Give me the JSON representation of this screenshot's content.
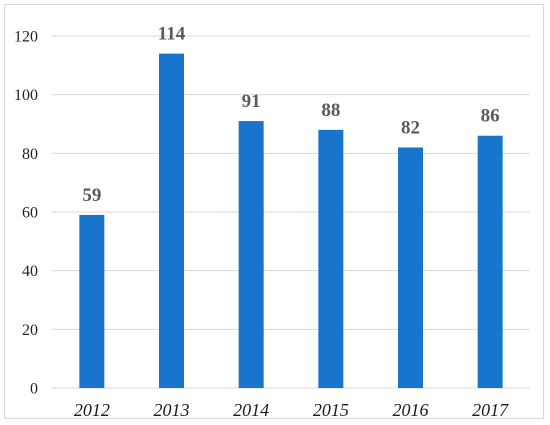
{
  "chart_data": {
    "type": "bar",
    "title": "",
    "xlabel": "",
    "ylabel": "",
    "categories": [
      "2012",
      "2013",
      "2014",
      "2015",
      "2016",
      "2017"
    ],
    "values": [
      59,
      114,
      91,
      88,
      82,
      86
    ],
    "data_labels": [
      "59",
      "114",
      "91",
      "88",
      "82",
      "86"
    ],
    "ylim": [
      0,
      120
    ],
    "yticks": [
      0,
      20,
      40,
      60,
      80,
      100,
      120
    ],
    "ytick_labels": [
      "0",
      "20",
      "40",
      "60",
      "80",
      "100",
      "120"
    ],
    "grid": true,
    "legend": "none",
    "colors": {
      "bar": "#1874CD",
      "grid": "#d9d9d9",
      "data_label": "#5a5a5a"
    }
  }
}
